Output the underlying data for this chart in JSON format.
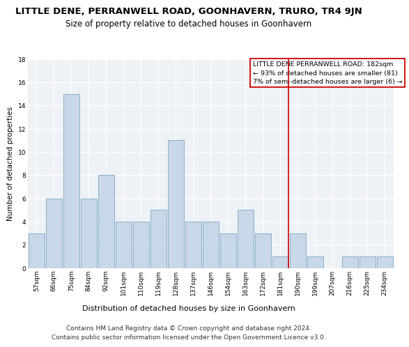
{
  "title": "LITTLE DENE, PERRANWELL ROAD, GOONHAVERN, TRURO, TR4 9JN",
  "subtitle": "Size of property relative to detached houses in Goonhavern",
  "xlabel": "Distribution of detached houses by size in Goonhavern",
  "ylabel": "Number of detached properties",
  "categories": [
    "57sqm",
    "66sqm",
    "75sqm",
    "84sqm",
    "92sqm",
    "101sqm",
    "110sqm",
    "119sqm",
    "128sqm",
    "137sqm",
    "146sqm",
    "154sqm",
    "163sqm",
    "172sqm",
    "181sqm",
    "190sqm",
    "199sqm",
    "207sqm",
    "216sqm",
    "225sqm",
    "234sqm"
  ],
  "values": [
    3,
    6,
    15,
    6,
    8,
    4,
    4,
    5,
    11,
    4,
    4,
    3,
    5,
    3,
    1,
    3,
    1,
    0,
    1,
    1,
    1
  ],
  "bar_color": "#c8d8e8",
  "bar_edgecolor": "#6699bb",
  "ref_idx": 14,
  "legend_line1": "LITTLE DENE PERRANWELL ROAD: 182sqm",
  "legend_line2": "← 93% of detached houses are smaller (81)",
  "legend_line3": "7% of semi-detached houses are larger (6) →",
  "legend_box_edgecolor": "#cc0000",
  "ref_line_color": "#cc0000",
  "ylim": [
    0,
    18
  ],
  "yticks": [
    0,
    2,
    4,
    6,
    8,
    10,
    12,
    14,
    16,
    18
  ],
  "background_color": "#eef2f7",
  "grid_color": "#ffffff",
  "title_fontsize": 9.5,
  "subtitle_fontsize": 8.5,
  "xlabel_fontsize": 8,
  "ylabel_fontsize": 7.5,
  "tick_fontsize": 6.5,
  "legend_fontsize": 6.8,
  "footer_fontsize": 6.5,
  "footer_line1": "Contains HM Land Registry data © Crown copyright and database right 2024.",
  "footer_line2": "Contains public sector information licensed under the Open Government Licence v3.0."
}
